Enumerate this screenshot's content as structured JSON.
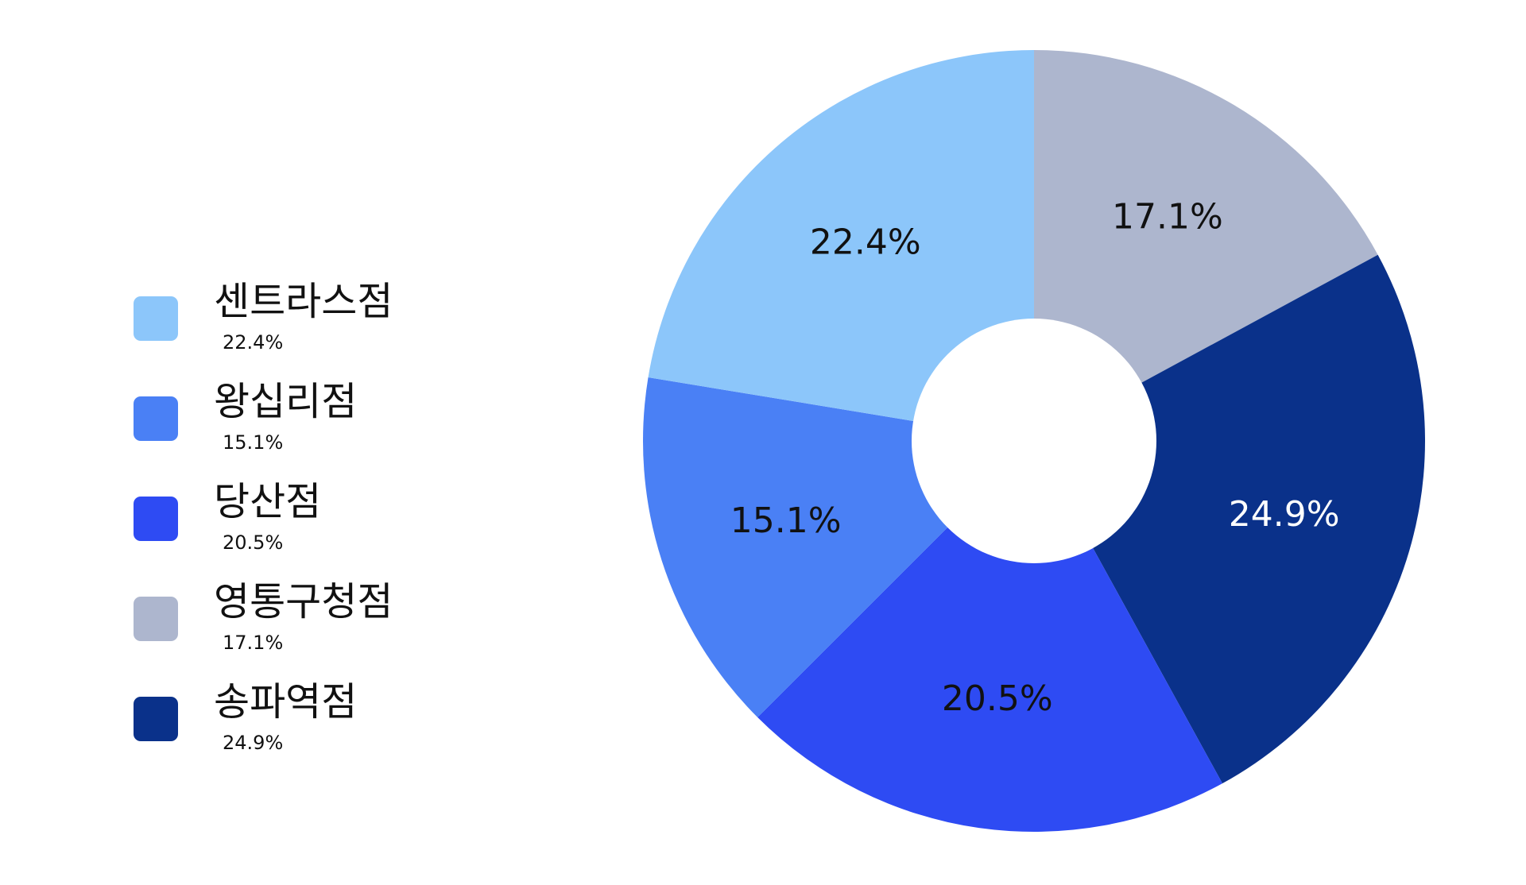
{
  "chart_data": {
    "type": "pie",
    "donut": true,
    "categories": [
      "센트라스점",
      "왕십리점",
      "당산점",
      "영통구청점",
      "송파역점"
    ],
    "values": [
      22.4,
      15.1,
      20.5,
      17.1,
      24.9
    ],
    "value_labels": [
      "22.4%",
      "15.1%",
      "20.5%",
      "17.1%",
      "24.9%"
    ],
    "slice_order_clockwise_from_top": [
      3,
      4,
      2,
      1,
      0
    ],
    "colors": [
      "#8CC6FA",
      "#4A80F5",
      "#2E4BF3",
      "#ADB6CE",
      "#0A318A"
    ],
    "label_colors": [
      "#111111",
      "#111111",
      "#111111",
      "#111111",
      "#FFFFFF"
    ],
    "legend_position": "left",
    "title": "",
    "xlabel": "",
    "ylabel": ""
  }
}
